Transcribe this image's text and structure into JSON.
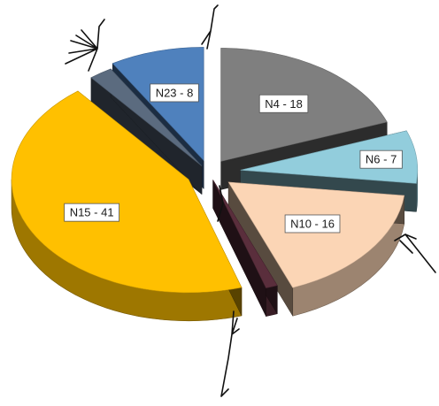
{
  "chart_data": {
    "type": "pie",
    "three_d": true,
    "exploded": true,
    "title": "",
    "legend": "none",
    "slices": [
      {
        "label": "N4 - 18",
        "category": "N4",
        "value": 18,
        "color": "#7f7f7f"
      },
      {
        "label": "N6 - 7",
        "category": "N6",
        "value": 7,
        "color": "#92cddc"
      },
      {
        "label": "N10 - 16",
        "category": "N10",
        "value": 16,
        "color": "#fbd5b5"
      },
      {
        "label": "",
        "category": "",
        "value": 1,
        "color": "#5a2e3c"
      },
      {
        "label": "N15 - 41",
        "category": "N15",
        "value": 41,
        "color": "#ffc000"
      },
      {
        "label": "",
        "category": "",
        "value": 2,
        "color": "#5b6b7f"
      },
      {
        "label": "N23 - 8",
        "category": "N23",
        "value": 8,
        "color": "#4f81bd"
      }
    ]
  }
}
